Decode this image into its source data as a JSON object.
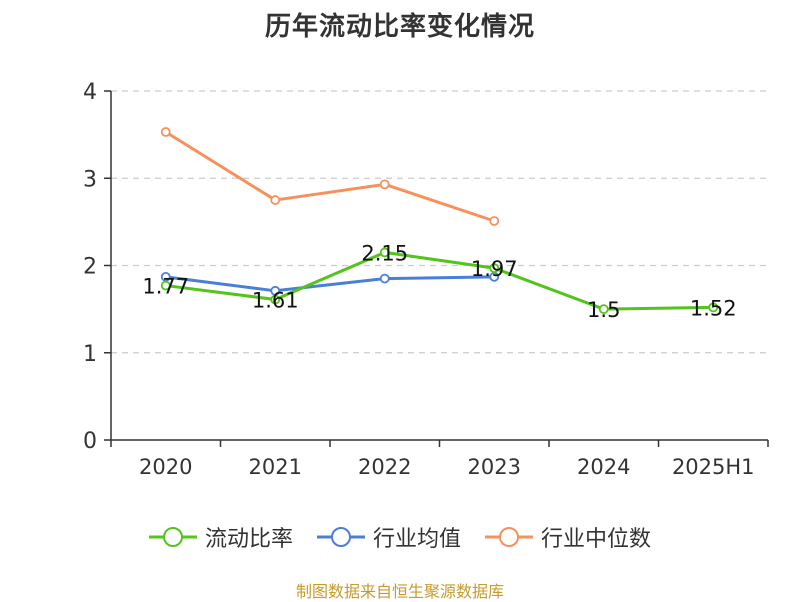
{
  "chart_data": {
    "type": "line",
    "title": "历年流动比率变化情况",
    "categories": [
      "2020",
      "2021",
      "2022",
      "2023",
      "2024",
      "2025H1"
    ],
    "ylim": [
      0,
      4
    ],
    "yticks": [
      "0",
      "1",
      "2",
      "3",
      "4"
    ],
    "grid": true,
    "legend_position": "bottom-center",
    "series": [
      {
        "name": "流动比率",
        "color": "#52c41a",
        "values": [
          1.77,
          1.61,
          2.15,
          1.97,
          1.5,
          1.52
        ],
        "labels": [
          "1.77",
          "1.61",
          "2.15",
          "1.97",
          "1.5",
          "1.52"
        ]
      },
      {
        "name": "行业均值",
        "color": "#4a7fd8",
        "values": [
          1.87,
          1.71,
          1.85,
          1.87,
          null,
          null
        ]
      },
      {
        "name": "行业中位数",
        "color": "#f7915c",
        "values": [
          3.53,
          2.75,
          2.93,
          2.51,
          null,
          null
        ]
      }
    ]
  },
  "source": "制图数据来自恒生聚源数据库"
}
